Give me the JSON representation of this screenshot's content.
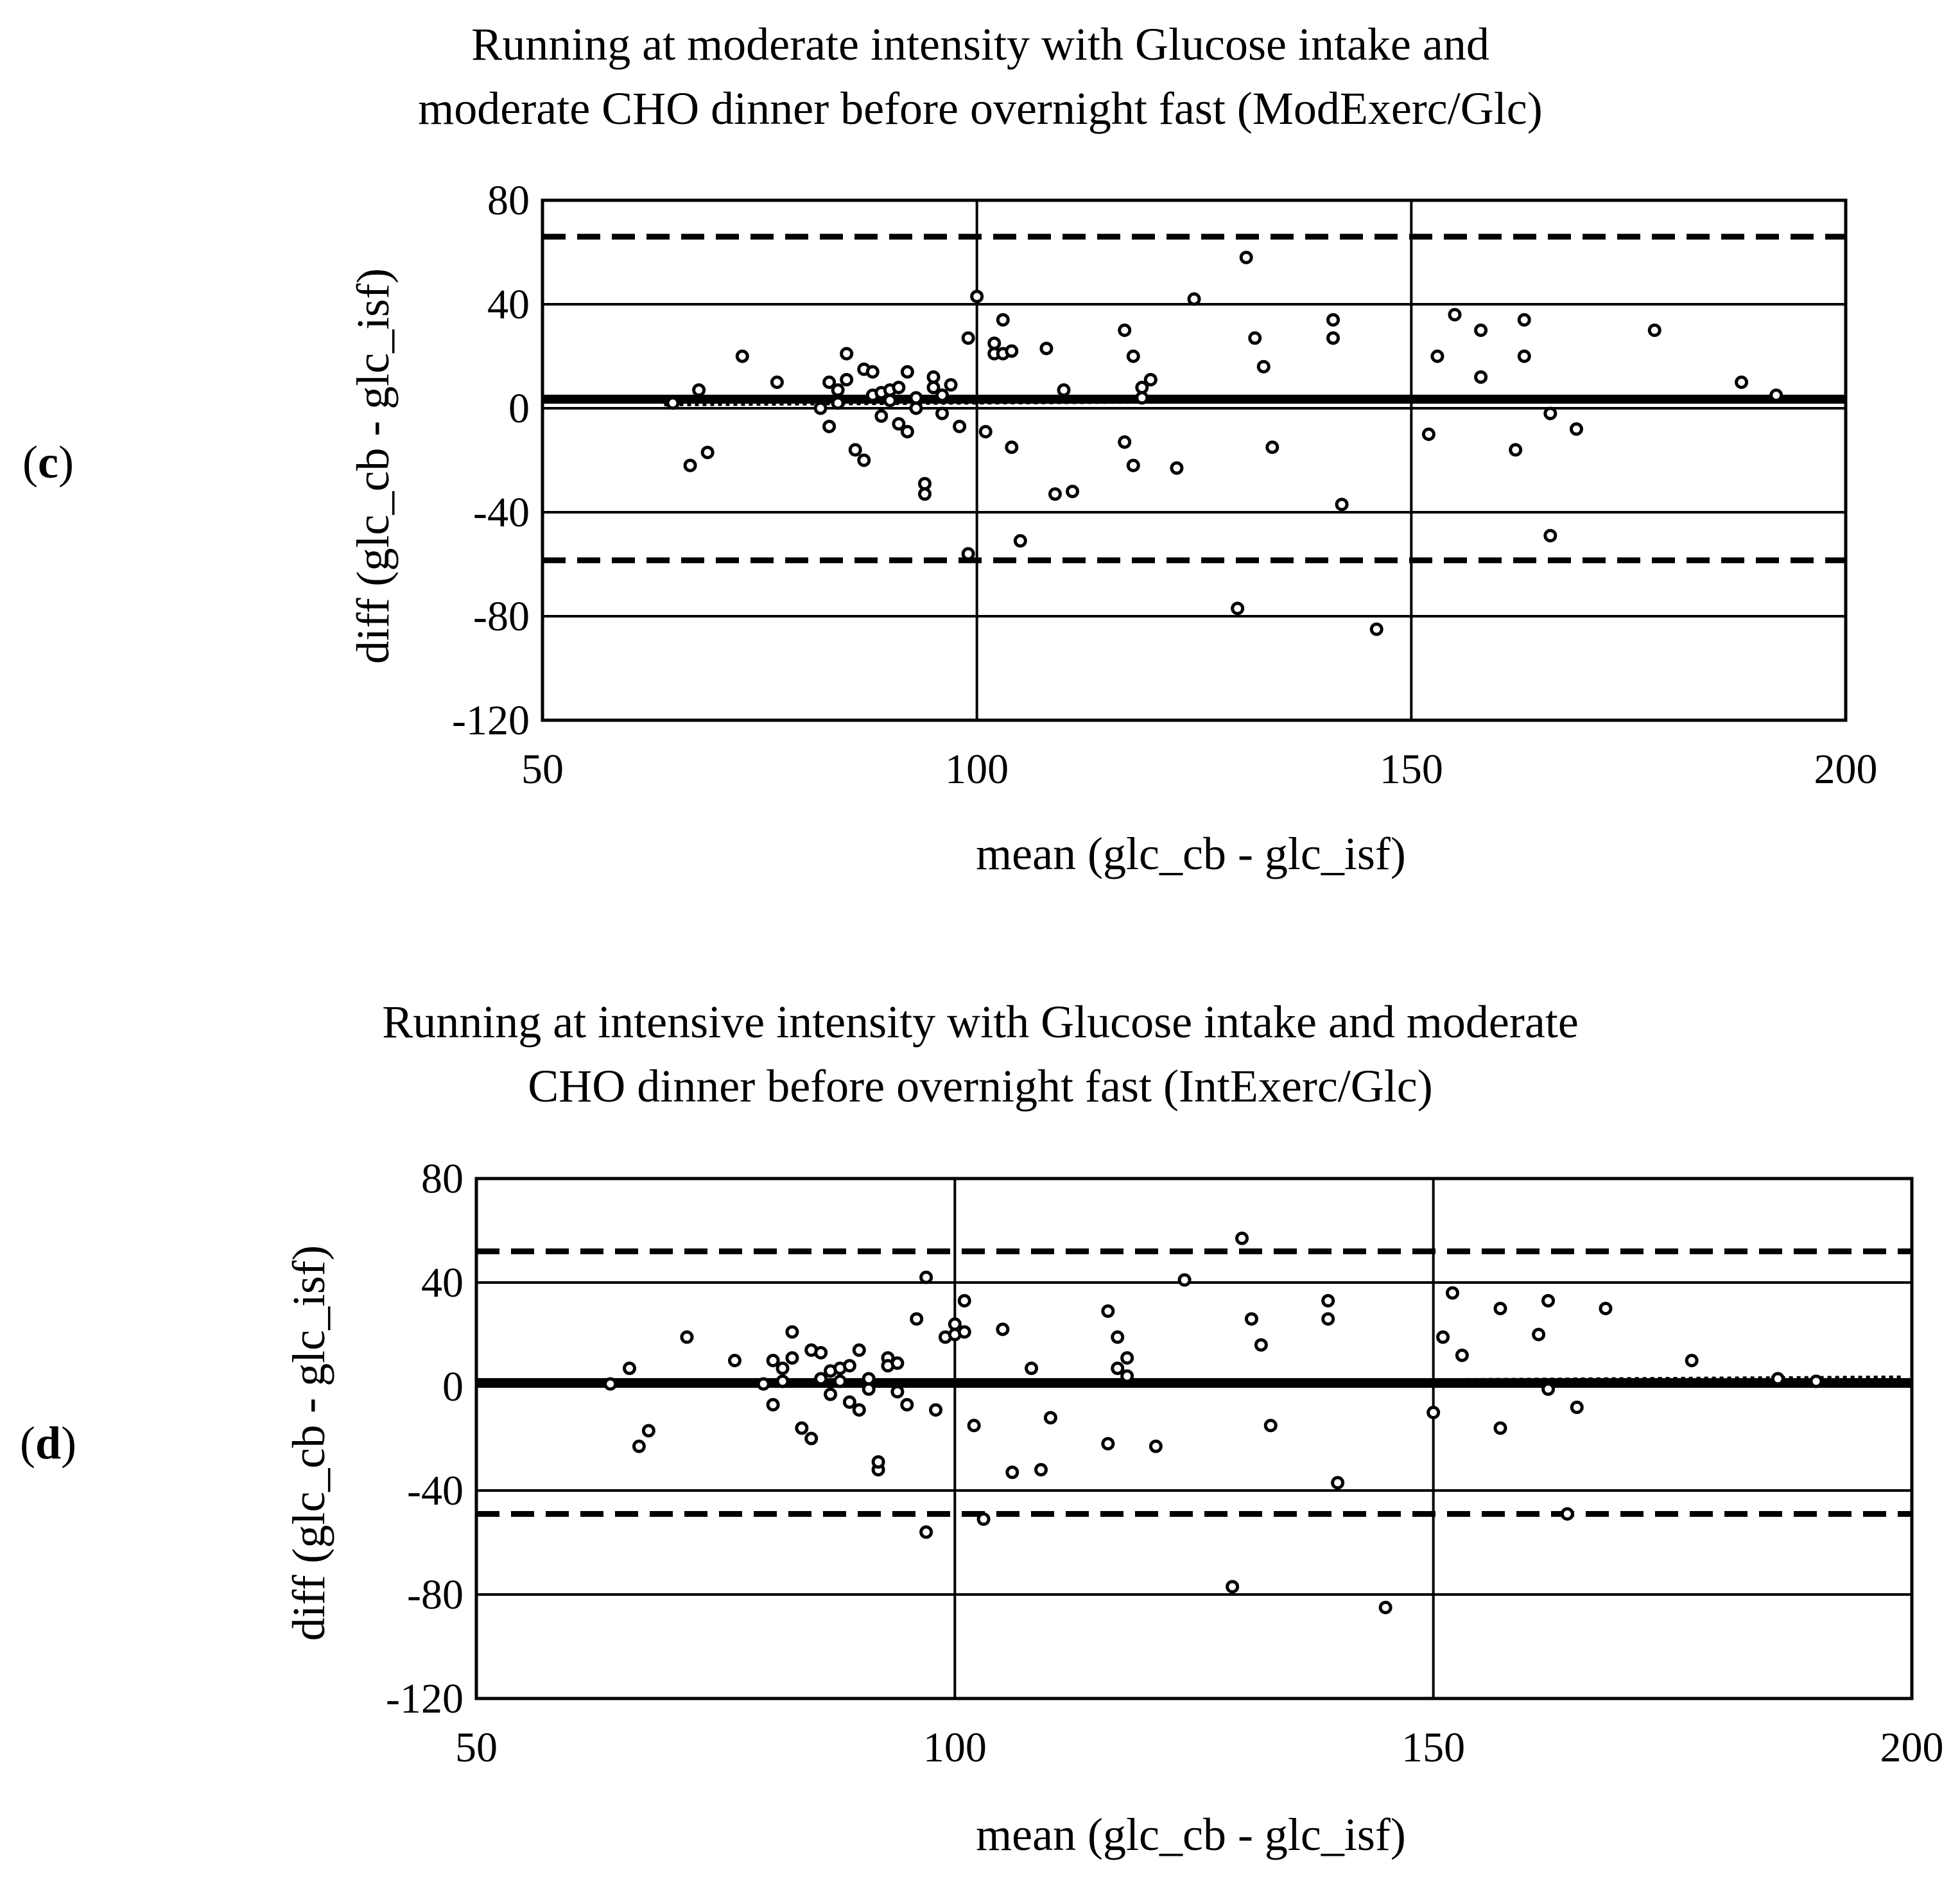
{
  "chart_data": [
    {
      "panel": "(c)",
      "panel_letter": "c",
      "type": "scatter",
      "title": [
        "Running at moderate intensity with Glucose intake and",
        "moderate CHO dinner before overnight fast (ModExerc/Glc)"
      ],
      "xlabel": "mean (glc_cb - glc_isf)",
      "ylabel": "diff (glc_cb - glc_isf)",
      "xlim": [
        50,
        200
      ],
      "ylim": [
        -120,
        80
      ],
      "xticks": [
        50,
        100,
        150,
        200
      ],
      "yticks": [
        -120,
        -80,
        -40,
        0,
        40,
        80
      ],
      "x_grid": [
        100,
        150
      ],
      "y_grid": [
        -80,
        -40,
        0,
        40
      ],
      "mean_difference": 3.5,
      "upper_limit": 66,
      "lower_limit": -58.5,
      "trend_line": {
        "x": [
          64,
          199
        ],
        "y": [
          1.5,
          4
        ]
      },
      "points": {
        "x": [
          65,
          68,
          67,
          69,
          73,
          77,
          82,
          83,
          83,
          84,
          84,
          85,
          85,
          86,
          87,
          87,
          88,
          88,
          89,
          89,
          90,
          90,
          91,
          91,
          92,
          92,
          93,
          93,
          94,
          94,
          95,
          95,
          96,
          96,
          97,
          98,
          99,
          99,
          100,
          101,
          102,
          102,
          103,
          103,
          104,
          104,
          105,
          108,
          109,
          110,
          111,
          117,
          117,
          118,
          118,
          119,
          119,
          120,
          123,
          125,
          130,
          131,
          132,
          133,
          134,
          141,
          141,
          142,
          146,
          152,
          153,
          155,
          158,
          158,
          162,
          163,
          163,
          166,
          166,
          169,
          178,
          188,
          192
        ],
        "y": [
          2,
          7,
          -22,
          -17,
          20,
          10,
          0,
          10,
          -7,
          7,
          2,
          21,
          11,
          -16,
          15,
          -20,
          14,
          5,
          -3,
          6,
          3,
          7,
          -6,
          8,
          -9,
          14,
          4,
          0,
          -33,
          -29,
          12,
          8,
          5,
          -2,
          9,
          -7,
          27,
          -56,
          43,
          -9,
          21,
          25,
          21,
          34,
          22,
          -15,
          -51,
          23,
          -33,
          7,
          -32,
          -13,
          30,
          -22,
          20,
          8,
          4,
          11,
          -23,
          42,
          -77,
          58,
          27,
          16,
          -15,
          34,
          27,
          -37,
          -85,
          -10,
          20,
          36,
          12,
          30,
          -16,
          20,
          34,
          -2,
          -49,
          -8,
          30,
          10,
          5
        ]
      }
    },
    {
      "panel": "(d)",
      "panel_letter": "d",
      "type": "scatter",
      "title": [
        "Running at intensive intensity with Glucose intake and moderate",
        "CHO dinner before overnight fast (IntExerc/Glc)"
      ],
      "xlabel": "mean (glc_cb - glc_isf)",
      "ylabel": "diff (glc_cb - glc_isf)",
      "xlim": [
        50,
        200
      ],
      "ylim": [
        -120,
        80
      ],
      "xticks": [
        50,
        100,
        150,
        200
      ],
      "yticks": [
        -120,
        -80,
        -40,
        0,
        40,
        80
      ],
      "x_grid": [
        100,
        150
      ],
      "y_grid": [
        -80,
        -40,
        0,
        40
      ],
      "mean_difference": 1.5,
      "upper_limit": 52,
      "lower_limit": -49,
      "trend_line": {
        "x": [
          64,
          199
        ],
        "y": [
          0.5,
          3.5
        ]
      },
      "points": {
        "x": [
          64,
          67,
          66,
          68,
          72,
          77,
          80,
          81,
          81,
          82,
          82,
          83,
          83,
          84,
          85,
          85,
          86,
          86,
          87,
          87,
          88,
          88,
          89,
          89,
          90,
          90,
          91,
          91,
          92,
          92,
          93,
          93,
          94,
          94,
          95,
          96,
          97,
          97,
          98,
          99,
          100,
          100,
          101,
          101,
          102,
          103,
          105,
          106,
          108,
          109,
          110,
          116,
          116,
          117,
          117,
          118,
          118,
          121,
          124,
          129,
          130,
          131,
          132,
          133,
          139,
          139,
          140,
          145,
          150,
          151,
          152,
          153,
          157,
          157,
          161,
          162,
          162,
          164,
          165,
          168,
          177,
          186,
          190
        ],
        "y": [
          1,
          -23,
          7,
          -17,
          19,
          10,
          1,
          10,
          -7,
          7,
          2,
          21,
          11,
          -16,
          14,
          -20,
          13,
          3,
          -3,
          6,
          2,
          7,
          -6,
          8,
          -9,
          14,
          3,
          -1,
          -32,
          -29,
          11,
          8,
          -2,
          9,
          -7,
          26,
          -56,
          42,
          -9,
          19,
          24,
          20,
          33,
          21,
          -15,
          -51,
          22,
          -33,
          7,
          -32,
          -12,
          29,
          -22,
          19,
          7,
          4,
          11,
          -23,
          41,
          -77,
          57,
          26,
          16,
          -15,
          33,
          26,
          -37,
          -85,
          -10,
          19,
          36,
          12,
          30,
          -16,
          20,
          33,
          -1,
          -49,
          -8,
          30,
          10,
          3,
          2
        ]
      }
    }
  ]
}
